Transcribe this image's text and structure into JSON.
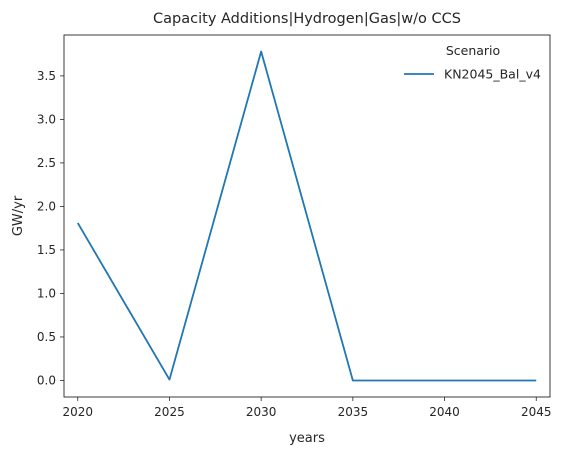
{
  "chart_data": {
    "type": "line",
    "title": "Capacity Additions|Hydrogen|Gas|w/o CCS",
    "xlabel": "years",
    "ylabel": "GW/yr",
    "x": [
      2020,
      2025,
      2030,
      2035,
      2040,
      2045
    ],
    "series": [
      {
        "name": "KN2045_Bal_v4",
        "color": "#1f77b4",
        "values": [
          1.81,
          0.01,
          3.78,
          0.0,
          0.0,
          0.0
        ]
      }
    ],
    "xlim": [
      2019.25,
      2045.75
    ],
    "ylim": [
      -0.19,
      3.97
    ],
    "xticks": [
      2020,
      2025,
      2030,
      2035,
      2040,
      2045
    ],
    "yticks": [
      0.0,
      0.5,
      1.0,
      1.5,
      2.0,
      2.5,
      3.0,
      3.5
    ],
    "ytick_labels": [
      "0.0",
      "0.5",
      "1.0",
      "1.5",
      "2.0",
      "2.5",
      "3.0",
      "3.5"
    ],
    "grid": false,
    "legend": {
      "title": "Scenario",
      "placement": "top-right"
    }
  }
}
